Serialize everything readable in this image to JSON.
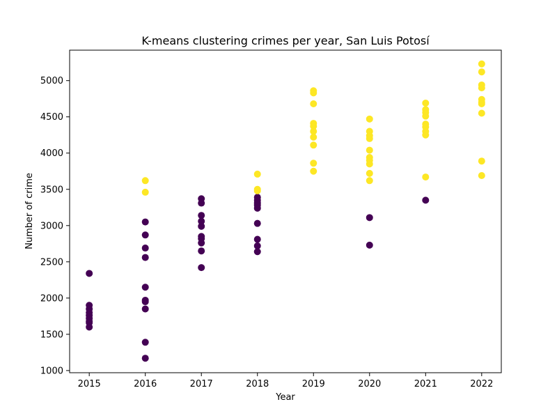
{
  "chart_data": {
    "type": "scatter",
    "title": "K-means clustering crimes per year, San Luis Potosí",
    "xlabel": "Year",
    "ylabel": "Number of crime",
    "xlim": [
      2014.65,
      2022.35
    ],
    "ylim": [
      970,
      5420
    ],
    "x_ticks": [
      2015,
      2016,
      2017,
      2018,
      2019,
      2020,
      2021,
      2022
    ],
    "y_ticks": [
      1000,
      1500,
      2000,
      2500,
      3000,
      3500,
      4000,
      4500,
      5000
    ],
    "grid": false,
    "legend": "none",
    "series": [
      {
        "color": "#440154",
        "points": [
          [
            2015,
            2340
          ],
          [
            2015,
            1900
          ],
          [
            2015,
            1850
          ],
          [
            2015,
            1800
          ],
          [
            2015,
            1760
          ],
          [
            2015,
            1720
          ],
          [
            2015,
            1680
          ],
          [
            2015,
            1660
          ],
          [
            2015,
            1600
          ],
          [
            2016,
            3050
          ],
          [
            2016,
            2870
          ],
          [
            2016,
            2690
          ],
          [
            2016,
            2560
          ],
          [
            2016,
            2150
          ],
          [
            2016,
            1970
          ],
          [
            2016,
            1950
          ],
          [
            2016,
            1850
          ],
          [
            2016,
            1390
          ],
          [
            2016,
            1170
          ],
          [
            2017,
            3370
          ],
          [
            2017,
            3310
          ],
          [
            2017,
            3140
          ],
          [
            2017,
            3060
          ],
          [
            2017,
            2990
          ],
          [
            2017,
            2850
          ],
          [
            2017,
            2820
          ],
          [
            2017,
            2760
          ],
          [
            2017,
            2650
          ],
          [
            2017,
            2420
          ],
          [
            2018,
            3390
          ],
          [
            2018,
            3350
          ],
          [
            2018,
            3320
          ],
          [
            2018,
            3300
          ],
          [
            2018,
            3280
          ],
          [
            2018,
            3240
          ],
          [
            2018,
            3030
          ],
          [
            2018,
            2810
          ],
          [
            2018,
            2720
          ],
          [
            2018,
            2640
          ],
          [
            2020,
            3110
          ],
          [
            2020,
            2730
          ],
          [
            2021,
            3350
          ]
        ]
      },
      {
        "color": "#fde725",
        "points": [
          [
            2016,
            3620
          ],
          [
            2016,
            3460
          ],
          [
            2018,
            3710
          ],
          [
            2018,
            3500
          ],
          [
            2018,
            3480
          ],
          [
            2019,
            4860
          ],
          [
            2019,
            4830
          ],
          [
            2019,
            4680
          ],
          [
            2019,
            4410
          ],
          [
            2019,
            4370
          ],
          [
            2019,
            4300
          ],
          [
            2019,
            4220
          ],
          [
            2019,
            4110
          ],
          [
            2019,
            3860
          ],
          [
            2019,
            3750
          ],
          [
            2020,
            4470
          ],
          [
            2020,
            4300
          ],
          [
            2020,
            4240
          ],
          [
            2020,
            4200
          ],
          [
            2020,
            4040
          ],
          [
            2020,
            3940
          ],
          [
            2020,
            3900
          ],
          [
            2020,
            3850
          ],
          [
            2020,
            3720
          ],
          [
            2020,
            3620
          ],
          [
            2021,
            4690
          ],
          [
            2021,
            4600
          ],
          [
            2021,
            4560
          ],
          [
            2021,
            4510
          ],
          [
            2021,
            4400
          ],
          [
            2021,
            4360
          ],
          [
            2021,
            4300
          ],
          [
            2021,
            4250
          ],
          [
            2021,
            3670
          ],
          [
            2022,
            5230
          ],
          [
            2022,
            5120
          ],
          [
            2022,
            4940
          ],
          [
            2022,
            4900
          ],
          [
            2022,
            4740
          ],
          [
            2022,
            4700
          ],
          [
            2022,
            4680
          ],
          [
            2022,
            4550
          ],
          [
            2022,
            3890
          ],
          [
            2022,
            3690
          ]
        ]
      }
    ]
  }
}
